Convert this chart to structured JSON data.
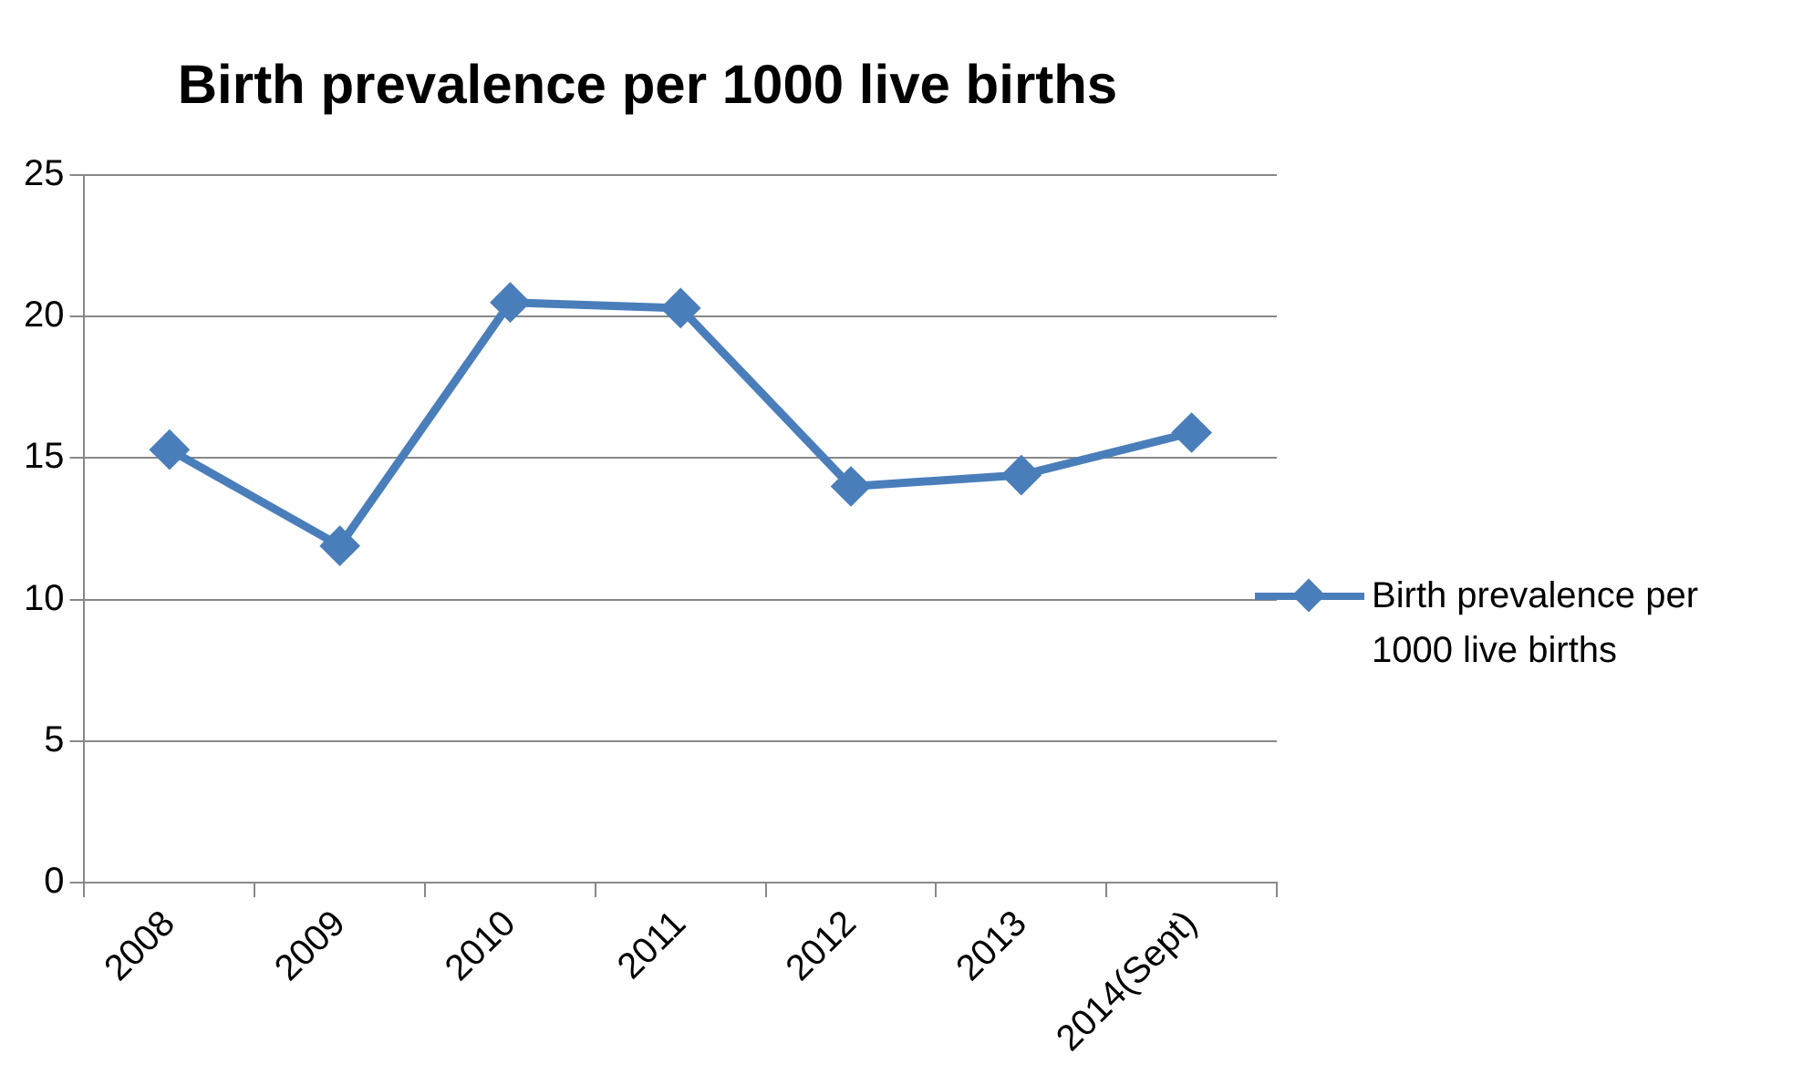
{
  "chart_data": {
    "type": "line",
    "title": "Birth prevalence per 1000 live births",
    "categories": [
      "2008",
      "2009",
      "2010",
      "2011",
      "2012",
      "2013",
      "2014(Sept)"
    ],
    "series": [
      {
        "name": "Birth prevalence per 1000 live births",
        "color": "#4a7ebb",
        "values": [
          15.3,
          11.9,
          20.5,
          20.3,
          14.0,
          14.4,
          15.9
        ]
      }
    ],
    "ylim": [
      0,
      25
    ],
    "yticks": [
      0,
      5,
      10,
      15,
      20,
      25
    ],
    "grid": "y",
    "legend": "right",
    "marker": "diamond",
    "line_style": "solid"
  }
}
